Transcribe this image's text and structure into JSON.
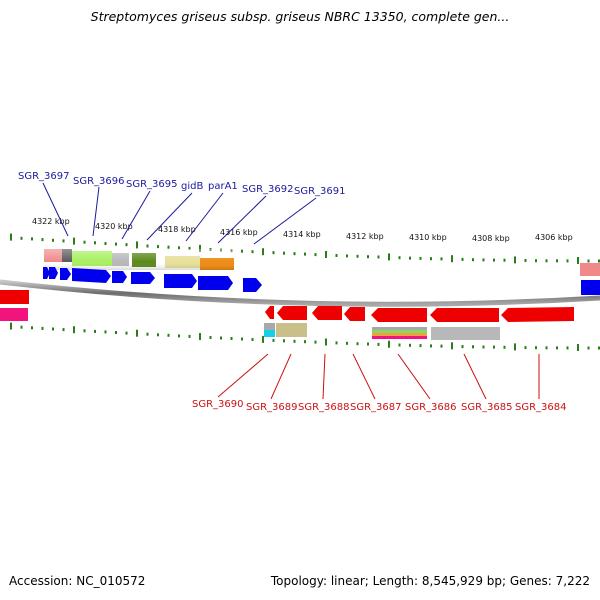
{
  "title": "Streptomyces griseus subsp. griseus NBRC 13350, complete gen...",
  "accession": "Accession: NC_010572",
  "summary": "Topology: linear; Length: 8,545,929 bp; Genes: 7,222",
  "scale_labels": [
    "4322 kbp",
    "4320 kbp",
    "4318 kbp",
    "4316 kbp",
    "4314 kbp",
    "4312 kbp",
    "4310 kbp",
    "4308 kbp",
    "4306 kbp"
  ],
  "top_genes": [
    "SGR_3697",
    "SGR_3696",
    "SGR_3695",
    "gidB",
    "parA1",
    "SGR_3692",
    "SGR_3691"
  ],
  "bottom_genes": [
    "SGR_3690",
    "SGR_3689",
    "SGR_3688",
    "SGR_3687",
    "SGR_3686",
    "SGR_3685",
    "SGR_3684"
  ],
  "colors": {
    "top_label": "#1a1a9c",
    "bottom_label": "#cc1111",
    "forward_gene": "#0000ee",
    "reverse_gene": "#ee0000",
    "tick": "#2a7d1a",
    "backbone": "#808080"
  }
}
